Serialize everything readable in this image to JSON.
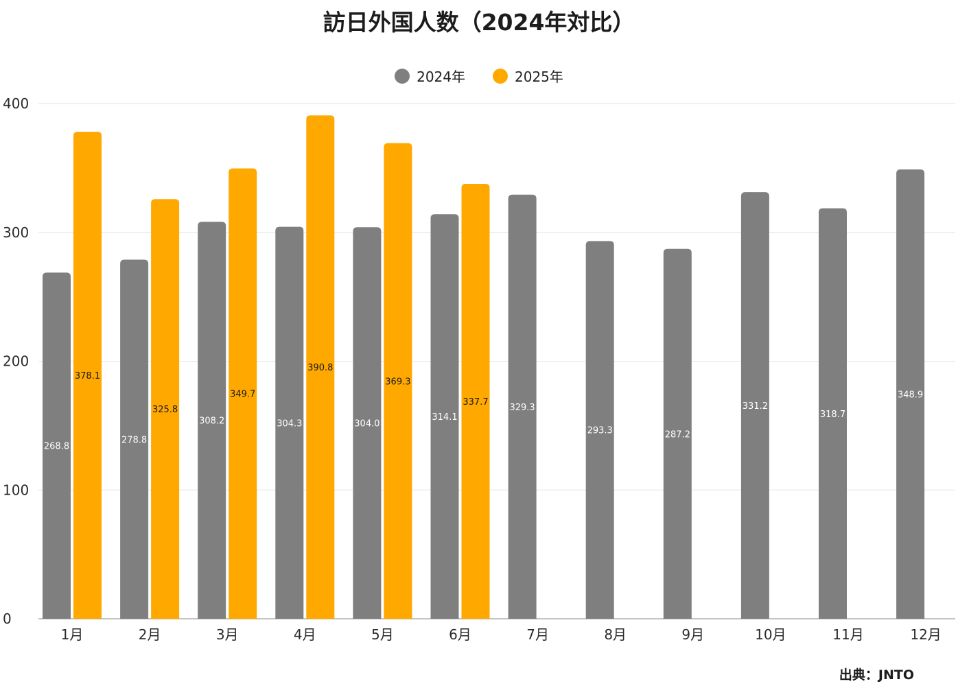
{
  "chart_data": {
    "type": "bar",
    "title": "訪日外国人数（2024年対比）",
    "categories": [
      "1月",
      "2月",
      "3月",
      "4月",
      "5月",
      "6月",
      "7月",
      "8月",
      "9月",
      "10月",
      "11月",
      "12月"
    ],
    "series": [
      {
        "name": "2024年",
        "color": "#7f7f7f",
        "values": [
          268.8,
          278.8,
          308.2,
          304.3,
          304.0,
          314.1,
          329.3,
          293.3,
          287.2,
          331.2,
          318.7,
          348.9
        ]
      },
      {
        "name": "2025年",
        "color": "#ffa800",
        "values": [
          378.1,
          325.8,
          349.7,
          390.8,
          369.3,
          337.7,
          null,
          null,
          null,
          null,
          null,
          null
        ]
      }
    ],
    "ylim": [
      0,
      400
    ],
    "yticks": [
      "0",
      "100",
      "200",
      "300",
      "400"
    ],
    "xlabel": "",
    "ylabel": "",
    "grid": true,
    "legend_position": "top-center",
    "data_labels": true
  },
  "source": "出典：JNTO"
}
